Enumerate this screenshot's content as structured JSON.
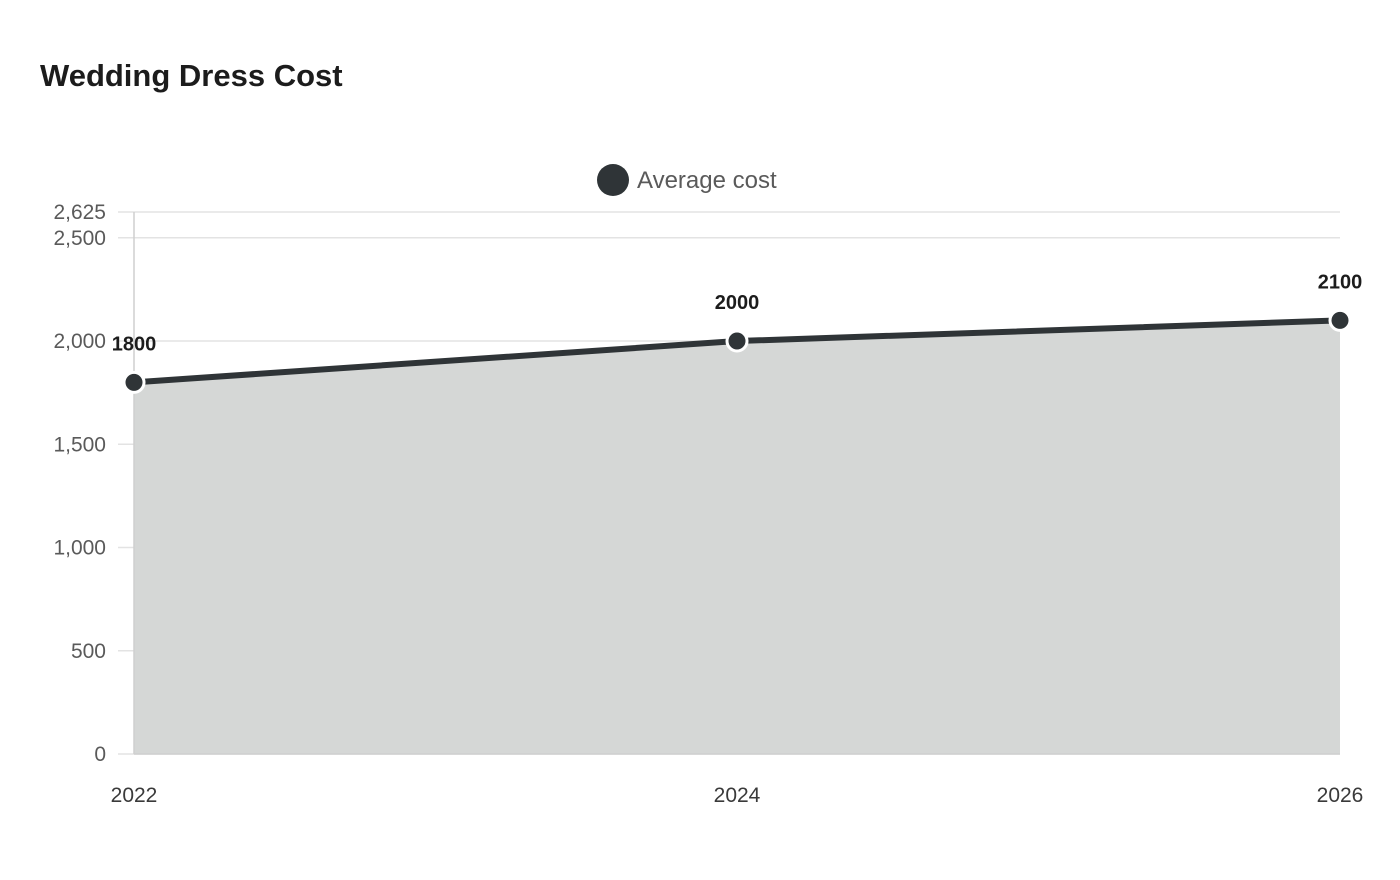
{
  "title": "Wedding Dress Cost",
  "colors": {
    "series": "#2f3437",
    "area": "#d5d7d6",
    "grid": "#e3e3e3",
    "axis": "#cfcfcf"
  },
  "chart_data": {
    "type": "area",
    "title": "Wedding Dress Cost",
    "xlabel": "",
    "ylabel": "",
    "x": [
      "2022",
      "2024",
      "2026"
    ],
    "series": [
      {
        "name": "Average cost",
        "values": [
          1800,
          2000,
          2100
        ],
        "color": "#2f3437"
      }
    ],
    "ylim": [
      0,
      2625
    ],
    "yticks": [
      0,
      500,
      1000,
      1500,
      2000,
      2500,
      2625
    ],
    "ytick_labels": [
      "0",
      "500",
      "1,000",
      "1,500",
      "2,000",
      "2,500",
      "2,625"
    ],
    "data_labels": [
      "1800",
      "2000",
      "2100"
    ],
    "grid": true,
    "legend_position": "top-center"
  }
}
